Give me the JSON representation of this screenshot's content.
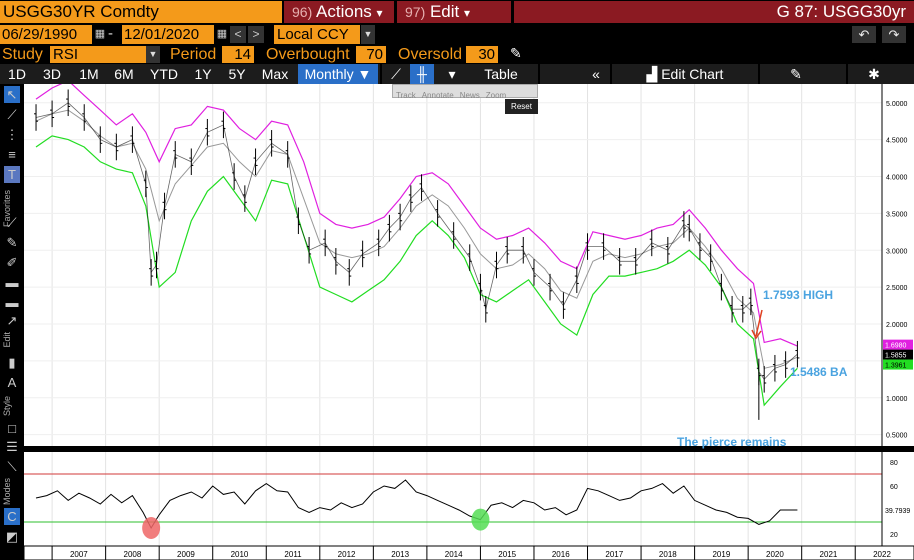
{
  "header": {
    "ticker": "USGG30YR Comdty",
    "actions_num": "96)",
    "actions_label": "Actions",
    "edit_num": "97)",
    "edit_label": "Edit",
    "title_right": "G 87: USGG30yr",
    "dropdown_glyph": "▾"
  },
  "dates": {
    "start": "06/29/1990",
    "end": "12/01/2020",
    "currency": "Local CCY",
    "dash": "-"
  },
  "study": {
    "study_label": "Study",
    "study_value": "RSI",
    "period_label": "Period",
    "period_value": "14",
    "overbought_label": "Overbought",
    "overbought_value": "70",
    "oversold_label": "Oversold",
    "oversold_value": "30"
  },
  "toolbar": {
    "ranges": [
      "1D",
      "3D",
      "1M",
      "6M",
      "YTD",
      "1Y",
      "5Y",
      "Max"
    ],
    "frequency": "Monthly",
    "table_label": "Table",
    "edit_chart_label": "Edit Chart"
  },
  "overlay": {
    "items": [
      "Track",
      "Annotate",
      "News",
      "Zoom"
    ],
    "reset": "Reset"
  },
  "sidebar": {
    "labels": [
      "Favorites",
      "Edit",
      "Style",
      "Modes"
    ]
  },
  "colors": {
    "orange": "#f49a1a",
    "menu_red": "#8b1a22",
    "upper_band": "#e020e0",
    "lower_band": "#22dd22",
    "mid_band": "#999999",
    "annotation": "#4aa3e0"
  },
  "chart_data": {
    "type": "line",
    "x_labels": [
      "2007",
      "2008",
      "2009",
      "2010",
      "2011",
      "2012",
      "2013",
      "2014",
      "2015",
      "2016",
      "2017",
      "2018",
      "2019",
      "2020",
      "2021",
      "2022"
    ],
    "price_axis": {
      "ylim": [
        0.4,
        5.2
      ],
      "ticks": [
        "5.0000",
        "4.5000",
        "4.0000",
        "3.5000",
        "3.0000",
        "2.5000",
        "2.0000",
        "1.5000",
        "1.0000",
        "0.5000"
      ]
    },
    "rsi_axis": {
      "ylim": [
        10,
        85
      ],
      "ticks": [
        "80",
        "60",
        "40",
        "20"
      ],
      "overbought": 70,
      "oversold": 30
    },
    "price_last": "1.5855",
    "upper_last": "1.6980",
    "lower_last": "1.3961",
    "rsi_last": "39.7939",
    "annotations": {
      "high": "1.7593 HIGH",
      "ba": "1.5486 BA",
      "pierce": "The pierce remains"
    },
    "series": [
      {
        "name": "price",
        "x": [
          2006.7,
          2007.0,
          2007.3,
          2007.6,
          2007.9,
          2008.2,
          2008.5,
          2008.75,
          2008.85,
          2008.95,
          2009.1,
          2009.3,
          2009.6,
          2009.9,
          2010.2,
          2010.4,
          2010.6,
          2010.8,
          2011.1,
          2011.4,
          2011.6,
          2011.8,
          2012.1,
          2012.3,
          2012.55,
          2012.8,
          2013.1,
          2013.3,
          2013.5,
          2013.7,
          2013.9,
          2014.2,
          2014.5,
          2014.8,
          2015.0,
          2015.1,
          2015.3,
          2015.5,
          2015.8,
          2016.0,
          2016.3,
          2016.55,
          2016.8,
          2017.0,
          2017.3,
          2017.6,
          2017.9,
          2018.2,
          2018.5,
          2018.8,
          2018.9,
          2019.1,
          2019.3,
          2019.5,
          2019.7,
          2019.9,
          2020.05,
          2020.2,
          2020.3,
          2020.5,
          2020.7,
          2020.92
        ],
        "values": [
          4.8,
          4.85,
          5.0,
          4.8,
          4.5,
          4.4,
          4.5,
          3.9,
          2.7,
          2.8,
          3.6,
          4.3,
          4.2,
          4.6,
          4.7,
          4.0,
          3.7,
          4.2,
          4.45,
          4.3,
          3.4,
          3.0,
          3.1,
          2.85,
          2.7,
          2.95,
          3.1,
          3.3,
          3.45,
          3.7,
          3.85,
          3.5,
          3.2,
          2.9,
          2.5,
          2.2,
          2.8,
          3.0,
          3.0,
          2.7,
          2.5,
          2.25,
          2.6,
          3.05,
          3.05,
          2.85,
          2.85,
          3.1,
          3.0,
          3.35,
          3.3,
          3.05,
          2.9,
          2.5,
          2.2,
          2.2,
          2.3,
          1.35,
          1.25,
          1.4,
          1.45,
          1.59
        ]
      },
      {
        "name": "upper",
        "x": [
          2006.7,
          2007.0,
          2007.3,
          2007.6,
          2007.9,
          2008.2,
          2008.5,
          2008.75,
          2009.0,
          2009.3,
          2009.6,
          2009.9,
          2010.2,
          2010.5,
          2010.8,
          2011.1,
          2011.4,
          2011.7,
          2012.0,
          2012.3,
          2012.6,
          2012.9,
          2013.2,
          2013.5,
          2013.8,
          2014.1,
          2014.4,
          2014.7,
          2015.0,
          2015.3,
          2015.6,
          2015.9,
          2016.2,
          2016.5,
          2016.8,
          2017.1,
          2017.4,
          2017.7,
          2018.0,
          2018.3,
          2018.6,
          2018.9,
          2019.2,
          2019.5,
          2019.8,
          2020.1,
          2020.3,
          2020.6,
          2020.92
        ],
        "values": [
          5.05,
          5.2,
          5.3,
          5.1,
          4.9,
          4.7,
          4.85,
          4.6,
          4.2,
          4.65,
          4.7,
          4.95,
          4.9,
          4.65,
          4.5,
          4.75,
          4.7,
          4.2,
          3.5,
          3.35,
          3.3,
          3.35,
          3.45,
          3.7,
          4.0,
          4.05,
          3.9,
          3.6,
          3.3,
          3.15,
          3.2,
          3.3,
          3.1,
          2.85,
          2.75,
          3.25,
          3.2,
          3.15,
          3.2,
          3.3,
          3.35,
          3.55,
          3.3,
          3.0,
          2.75,
          2.55,
          1.75,
          1.8,
          1.7
        ]
      },
      {
        "name": "middle",
        "x": [
          2006.7,
          2007.0,
          2007.3,
          2007.6,
          2007.9,
          2008.2,
          2008.5,
          2008.75,
          2009.0,
          2009.3,
          2009.6,
          2009.9,
          2010.2,
          2010.5,
          2010.8,
          2011.1,
          2011.4,
          2011.7,
          2012.0,
          2012.3,
          2012.6,
          2012.9,
          2013.2,
          2013.5,
          2013.8,
          2014.1,
          2014.4,
          2014.7,
          2015.0,
          2015.3,
          2015.6,
          2015.9,
          2016.2,
          2016.5,
          2016.8,
          2017.1,
          2017.4,
          2017.7,
          2018.0,
          2018.3,
          2018.6,
          2018.9,
          2019.2,
          2019.5,
          2019.8,
          2020.1,
          2020.3,
          2020.6,
          2020.92
        ],
        "values": [
          4.75,
          4.85,
          4.9,
          4.75,
          4.55,
          4.4,
          4.45,
          4.1,
          3.4,
          3.9,
          4.15,
          4.4,
          4.45,
          4.2,
          4.0,
          4.35,
          4.3,
          3.7,
          3.1,
          2.95,
          2.9,
          2.95,
          3.05,
          3.3,
          3.6,
          3.75,
          3.6,
          3.3,
          2.95,
          2.75,
          2.8,
          2.95,
          2.75,
          2.45,
          2.35,
          2.85,
          2.95,
          2.9,
          2.95,
          3.05,
          3.1,
          3.3,
          3.05,
          2.75,
          2.35,
          2.15,
          1.4,
          1.45,
          1.55
        ]
      },
      {
        "name": "lower",
        "x": [
          2006.7,
          2007.0,
          2007.3,
          2007.6,
          2007.9,
          2008.2,
          2008.5,
          2008.75,
          2009.0,
          2009.3,
          2009.6,
          2009.9,
          2010.2,
          2010.5,
          2010.8,
          2011.1,
          2011.4,
          2011.7,
          2012.0,
          2012.3,
          2012.6,
          2012.9,
          2013.2,
          2013.5,
          2013.8,
          2014.1,
          2014.4,
          2014.7,
          2015.0,
          2015.3,
          2015.6,
          2015.9,
          2016.2,
          2016.5,
          2016.8,
          2017.1,
          2017.4,
          2017.7,
          2018.0,
          2018.3,
          2018.6,
          2018.9,
          2019.2,
          2019.5,
          2019.8,
          2020.1,
          2020.3,
          2020.6,
          2020.92
        ],
        "values": [
          4.4,
          4.55,
          4.5,
          4.4,
          4.2,
          4.1,
          4.05,
          3.6,
          2.5,
          2.7,
          3.4,
          3.8,
          4.0,
          3.7,
          3.4,
          3.95,
          3.9,
          3.2,
          2.5,
          2.4,
          2.3,
          2.45,
          2.6,
          2.85,
          3.2,
          3.4,
          3.2,
          2.9,
          2.4,
          2.3,
          2.45,
          2.6,
          2.3,
          2.0,
          1.85,
          2.4,
          2.65,
          2.65,
          2.7,
          2.75,
          2.85,
          3.0,
          2.8,
          2.5,
          2.0,
          1.8,
          0.9,
          1.15,
          1.4
        ]
      },
      {
        "name": "rsi",
        "x": [
          2006.7,
          2006.9,
          2007.1,
          2007.3,
          2007.5,
          2007.7,
          2007.9,
          2008.1,
          2008.3,
          2008.5,
          2008.7,
          2008.85,
          2009.0,
          2009.2,
          2009.4,
          2009.6,
          2009.8,
          2010.0,
          2010.2,
          2010.4,
          2010.6,
          2010.8,
          2011.0,
          2011.2,
          2011.4,
          2011.6,
          2011.8,
          2012.0,
          2012.2,
          2012.4,
          2012.6,
          2012.8,
          2013.0,
          2013.2,
          2013.4,
          2013.6,
          2013.8,
          2014.0,
          2014.2,
          2014.4,
          2014.6,
          2014.8,
          2015.0,
          2015.2,
          2015.4,
          2015.6,
          2015.8,
          2016.0,
          2016.2,
          2016.4,
          2016.6,
          2016.8,
          2017.0,
          2017.2,
          2017.4,
          2017.6,
          2017.8,
          2018.0,
          2018.2,
          2018.4,
          2018.6,
          2018.8,
          2019.0,
          2019.2,
          2019.4,
          2019.6,
          2019.8,
          2020.0,
          2020.2,
          2020.4,
          2020.6,
          2020.92
        ],
        "values": [
          50,
          52,
          56,
          48,
          54,
          50,
          45,
          53,
          46,
          52,
          38,
          25,
          36,
          48,
          52,
          55,
          50,
          60,
          53,
          55,
          45,
          56,
          62,
          56,
          55,
          42,
          38,
          42,
          40,
          46,
          42,
          45,
          55,
          60,
          58,
          65,
          55,
          52,
          48,
          44,
          40,
          35,
          32,
          44,
          46,
          42,
          48,
          46,
          40,
          42,
          36,
          40,
          58,
          56,
          52,
          48,
          50,
          56,
          58,
          62,
          54,
          60,
          48,
          44,
          40,
          38,
          34,
          33,
          28,
          31,
          40,
          40
        ]
      }
    ]
  }
}
